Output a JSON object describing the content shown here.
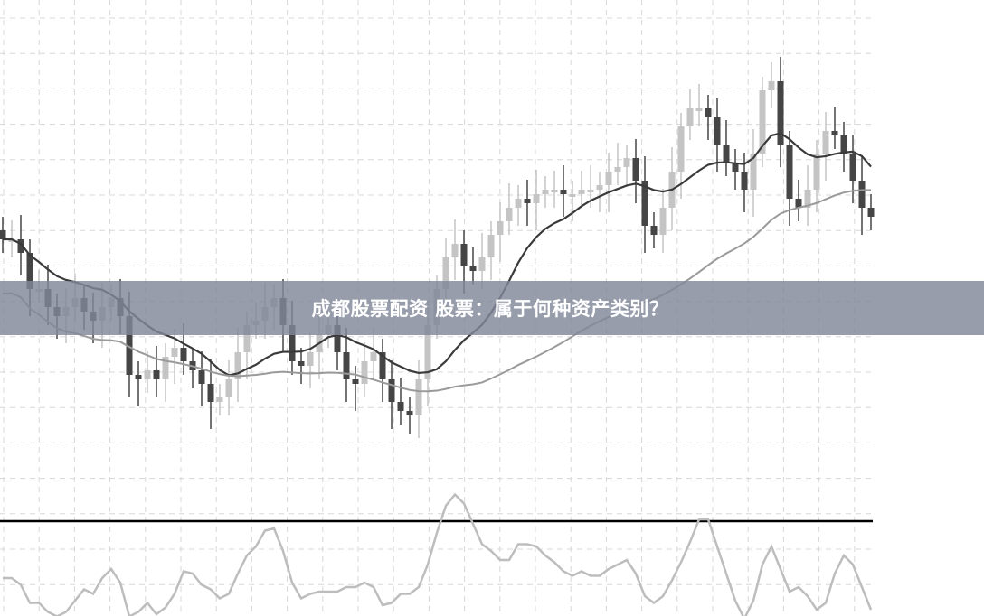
{
  "title": "成都股票配资 股票：属于何种资产类别？",
  "chart_data": {
    "type": "candlestick",
    "title": "",
    "xlabel": "",
    "ylabel": "",
    "grid": true,
    "closes": [
      33.5,
      33.5,
      32,
      28,
      28,
      26,
      25,
      26,
      27,
      25.5,
      24.5,
      26,
      27,
      25,
      18.5,
      18,
      19,
      18,
      20.5,
      21.5,
      20,
      19,
      17.5,
      15.5,
      16,
      18,
      21,
      24,
      24.5,
      26,
      27,
      24,
      20,
      19.5,
      21,
      23,
      24,
      21,
      18,
      17.5,
      20,
      21,
      18,
      15.5,
      14.5,
      14,
      18,
      24,
      28,
      31.5,
      33,
      30.5,
      30,
      31.5,
      34,
      35.5,
      37,
      38,
      37.5,
      38.5,
      39,
      39,
      38.5,
      38.5,
      39,
      39,
      39.5,
      41,
      41.5,
      42.5,
      40,
      35,
      34,
      37,
      41,
      46,
      48,
      48,
      47,
      44,
      42,
      41,
      39,
      43,
      50,
      51,
      44,
      38,
      37,
      39,
      43,
      45.5,
      45,
      43,
      40,
      37,
      36
    ],
    "ylim": [
      -8,
      60
    ],
    "colors": {
      "down": "#454545",
      "up": "#c4c4c4",
      "ma_fast": "#3a3a3a",
      "ma_slow": "#9a9a9a",
      "oscillator": "#bdbdbd",
      "divider": "#000000",
      "banner": "#808898"
    }
  }
}
